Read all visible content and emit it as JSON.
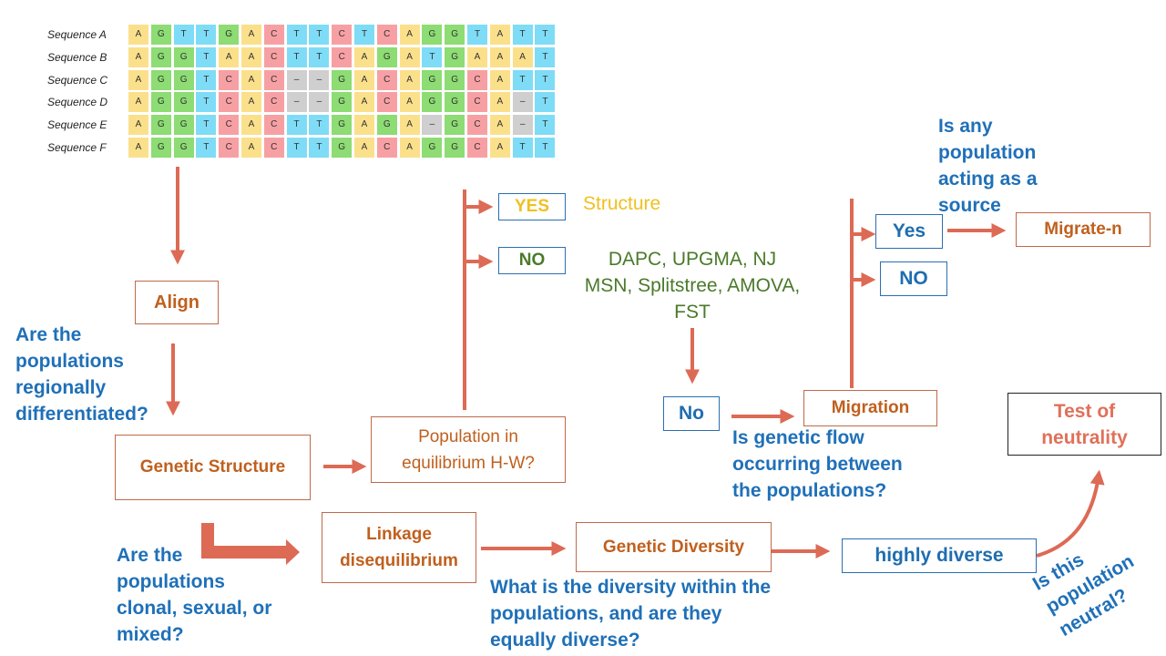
{
  "alignment": {
    "sequences": [
      {
        "name": "Sequence A",
        "bases": [
          "A",
          "G",
          "T",
          "T",
          "G",
          "A",
          "C",
          "T",
          "T",
          "C",
          "T",
          "C",
          "A",
          "G",
          "G",
          "T",
          "A",
          "T",
          "T"
        ]
      },
      {
        "name": "Sequence B",
        "bases": [
          "A",
          "G",
          "G",
          "T",
          "A",
          "A",
          "C",
          "T",
          "T",
          "C",
          "A",
          "G",
          "A",
          "T",
          "G",
          "A",
          "A",
          "A",
          "T"
        ]
      },
      {
        "name": "Sequence C",
        "bases": [
          "A",
          "G",
          "G",
          "T",
          "C",
          "A",
          "C",
          "–",
          "–",
          "G",
          "A",
          "C",
          "A",
          "G",
          "G",
          "C",
          "A",
          "T",
          "T"
        ]
      },
      {
        "name": "Sequence D",
        "bases": [
          "A",
          "G",
          "G",
          "T",
          "C",
          "A",
          "C",
          "–",
          "–",
          "G",
          "A",
          "C",
          "A",
          "G",
          "G",
          "C",
          "A",
          "–",
          "T"
        ]
      },
      {
        "name": "Sequence E",
        "bases": [
          "A",
          "G",
          "G",
          "T",
          "C",
          "A",
          "C",
          "T",
          "T",
          "G",
          "A",
          "G",
          "A",
          "–",
          "G",
          "C",
          "A",
          "–",
          "T"
        ]
      },
      {
        "name": "Sequence F",
        "bases": [
          "A",
          "G",
          "G",
          "T",
          "C",
          "A",
          "C",
          "T",
          "T",
          "G",
          "A",
          "C",
          "A",
          "G",
          "G",
          "C",
          "A",
          "T",
          "T"
        ]
      }
    ],
    "colors": {
      "A": "#fbe08c",
      "G": "#8ddc74",
      "T": "#7fdcf6",
      "C": "#f7a0a4",
      "–": "#cfcfcf"
    }
  },
  "boxes": {
    "align": "Align",
    "genetic_structure": "Genetic Structure",
    "population_hw": "Population in equilibrium H-W?",
    "yes_upper": "YES",
    "no_upper": "NO",
    "no_mid": "No",
    "migration": "Migration",
    "yes_migration": "Yes",
    "no_migration": "NO",
    "migrate_n": "Migrate-n",
    "test_neutrality": "Test of neutrality",
    "linkage": "Linkage disequilibrium",
    "genetic_diversity": "Genetic Diversity",
    "highly_diverse": "highly diverse"
  },
  "labels": {
    "structure": "Structure",
    "methods_line1": "DAPC, UPGMA, NJ",
    "methods_line2": "MSN, Splitstree, AMOVA,",
    "methods_line3": "FST"
  },
  "questions": {
    "regional": "Are the populations regionally differentiated?",
    "source": "Is any population acting as a source",
    "gene_flow": "Is genetic flow occurring between the populations?",
    "clonal": "Are the populations clonal, sexual, or mixed?",
    "diversity": "What is the diversity within the populations, and are they equally diverse?",
    "neutral": "Is this population neutral?"
  }
}
